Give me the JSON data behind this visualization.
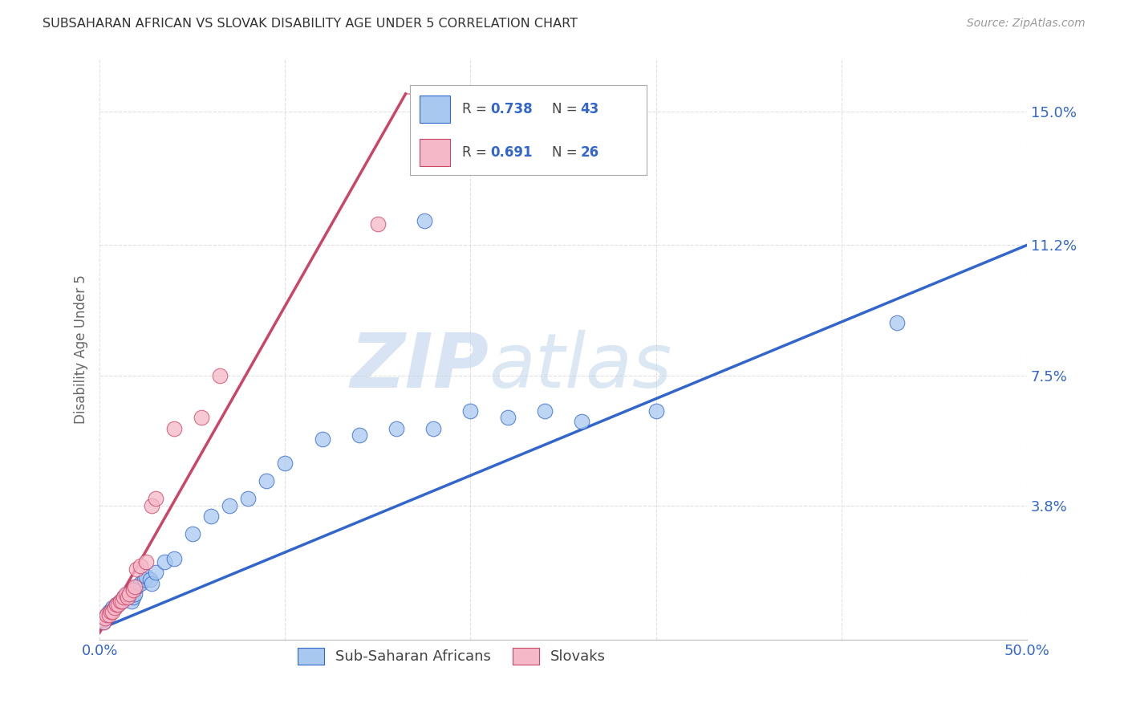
{
  "title": "SUBSAHARAN AFRICAN VS SLOVAK DISABILITY AGE UNDER 5 CORRELATION CHART",
  "source": "Source: ZipAtlas.com",
  "ylabel": "Disability Age Under 5",
  "xlim": [
    0.0,
    0.5
  ],
  "ylim": [
    0.0,
    0.165
  ],
  "xticks": [
    0.0,
    0.1,
    0.2,
    0.3,
    0.4,
    0.5
  ],
  "xticklabels": [
    "0.0%",
    "",
    "",
    "",
    "",
    "50.0%"
  ],
  "ytick_positions": [
    0.0,
    0.038,
    0.075,
    0.112,
    0.15
  ],
  "ytick_labels": [
    "",
    "3.8%",
    "7.5%",
    "11.2%",
    "15.0%"
  ],
  "blue_color": "#A8C8F0",
  "pink_color": "#F5B8C8",
  "blue_line_color": "#3366CC",
  "pink_line_color": "#CC4466",
  "legend_text_color": "#3366CC",
  "watermark_zip_color": "#C8D8EE",
  "watermark_atlas_color": "#B8D0E8",
  "blue_scatter_x": [
    0.002,
    0.004,
    0.005,
    0.006,
    0.007,
    0.008,
    0.009,
    0.01,
    0.011,
    0.012,
    0.013,
    0.014,
    0.015,
    0.016,
    0.017,
    0.018,
    0.019,
    0.02,
    0.022,
    0.024,
    0.025,
    0.027,
    0.028,
    0.03,
    0.035,
    0.04,
    0.05,
    0.06,
    0.07,
    0.08,
    0.09,
    0.1,
    0.12,
    0.14,
    0.16,
    0.18,
    0.2,
    0.22,
    0.24,
    0.26,
    0.3,
    0.43,
    0.175
  ],
  "blue_scatter_y": [
    0.005,
    0.007,
    0.008,
    0.008,
    0.009,
    0.009,
    0.01,
    0.01,
    0.011,
    0.011,
    0.012,
    0.012,
    0.013,
    0.013,
    0.011,
    0.012,
    0.013,
    0.015,
    0.016,
    0.017,
    0.018,
    0.017,
    0.016,
    0.019,
    0.022,
    0.023,
    0.03,
    0.035,
    0.038,
    0.04,
    0.045,
    0.05,
    0.057,
    0.058,
    0.06,
    0.06,
    0.065,
    0.063,
    0.065,
    0.062,
    0.065,
    0.09,
    0.119
  ],
  "pink_scatter_x": [
    0.002,
    0.003,
    0.004,
    0.005,
    0.006,
    0.007,
    0.008,
    0.009,
    0.01,
    0.011,
    0.012,
    0.013,
    0.014,
    0.015,
    0.016,
    0.018,
    0.019,
    0.02,
    0.022,
    0.025,
    0.028,
    0.03,
    0.04,
    0.055,
    0.065,
    0.15
  ],
  "pink_scatter_y": [
    0.005,
    0.006,
    0.007,
    0.007,
    0.008,
    0.008,
    0.009,
    0.01,
    0.01,
    0.011,
    0.011,
    0.012,
    0.013,
    0.012,
    0.013,
    0.014,
    0.015,
    0.02,
    0.021,
    0.022,
    0.038,
    0.04,
    0.06,
    0.063,
    0.075,
    0.118
  ],
  "blue_line_x0": 0.0,
  "blue_line_y0": 0.003,
  "blue_line_x1": 0.5,
  "blue_line_y1": 0.112,
  "pink_line_x0": 0.0,
  "pink_line_y0": 0.002,
  "pink_line_x1": 0.165,
  "pink_line_y1": 0.155,
  "pink_line_dashed_x0": 0.165,
  "pink_line_dashed_y0": 0.155,
  "pink_line_dashed_x1": 0.21,
  "pink_line_dashed_y1": 0.155,
  "legend_label_blue": "Sub-Saharan Africans",
  "legend_label_pink": "Slovaks",
  "grid_color": "#DDDDDD",
  "background_color": "#FFFFFF"
}
